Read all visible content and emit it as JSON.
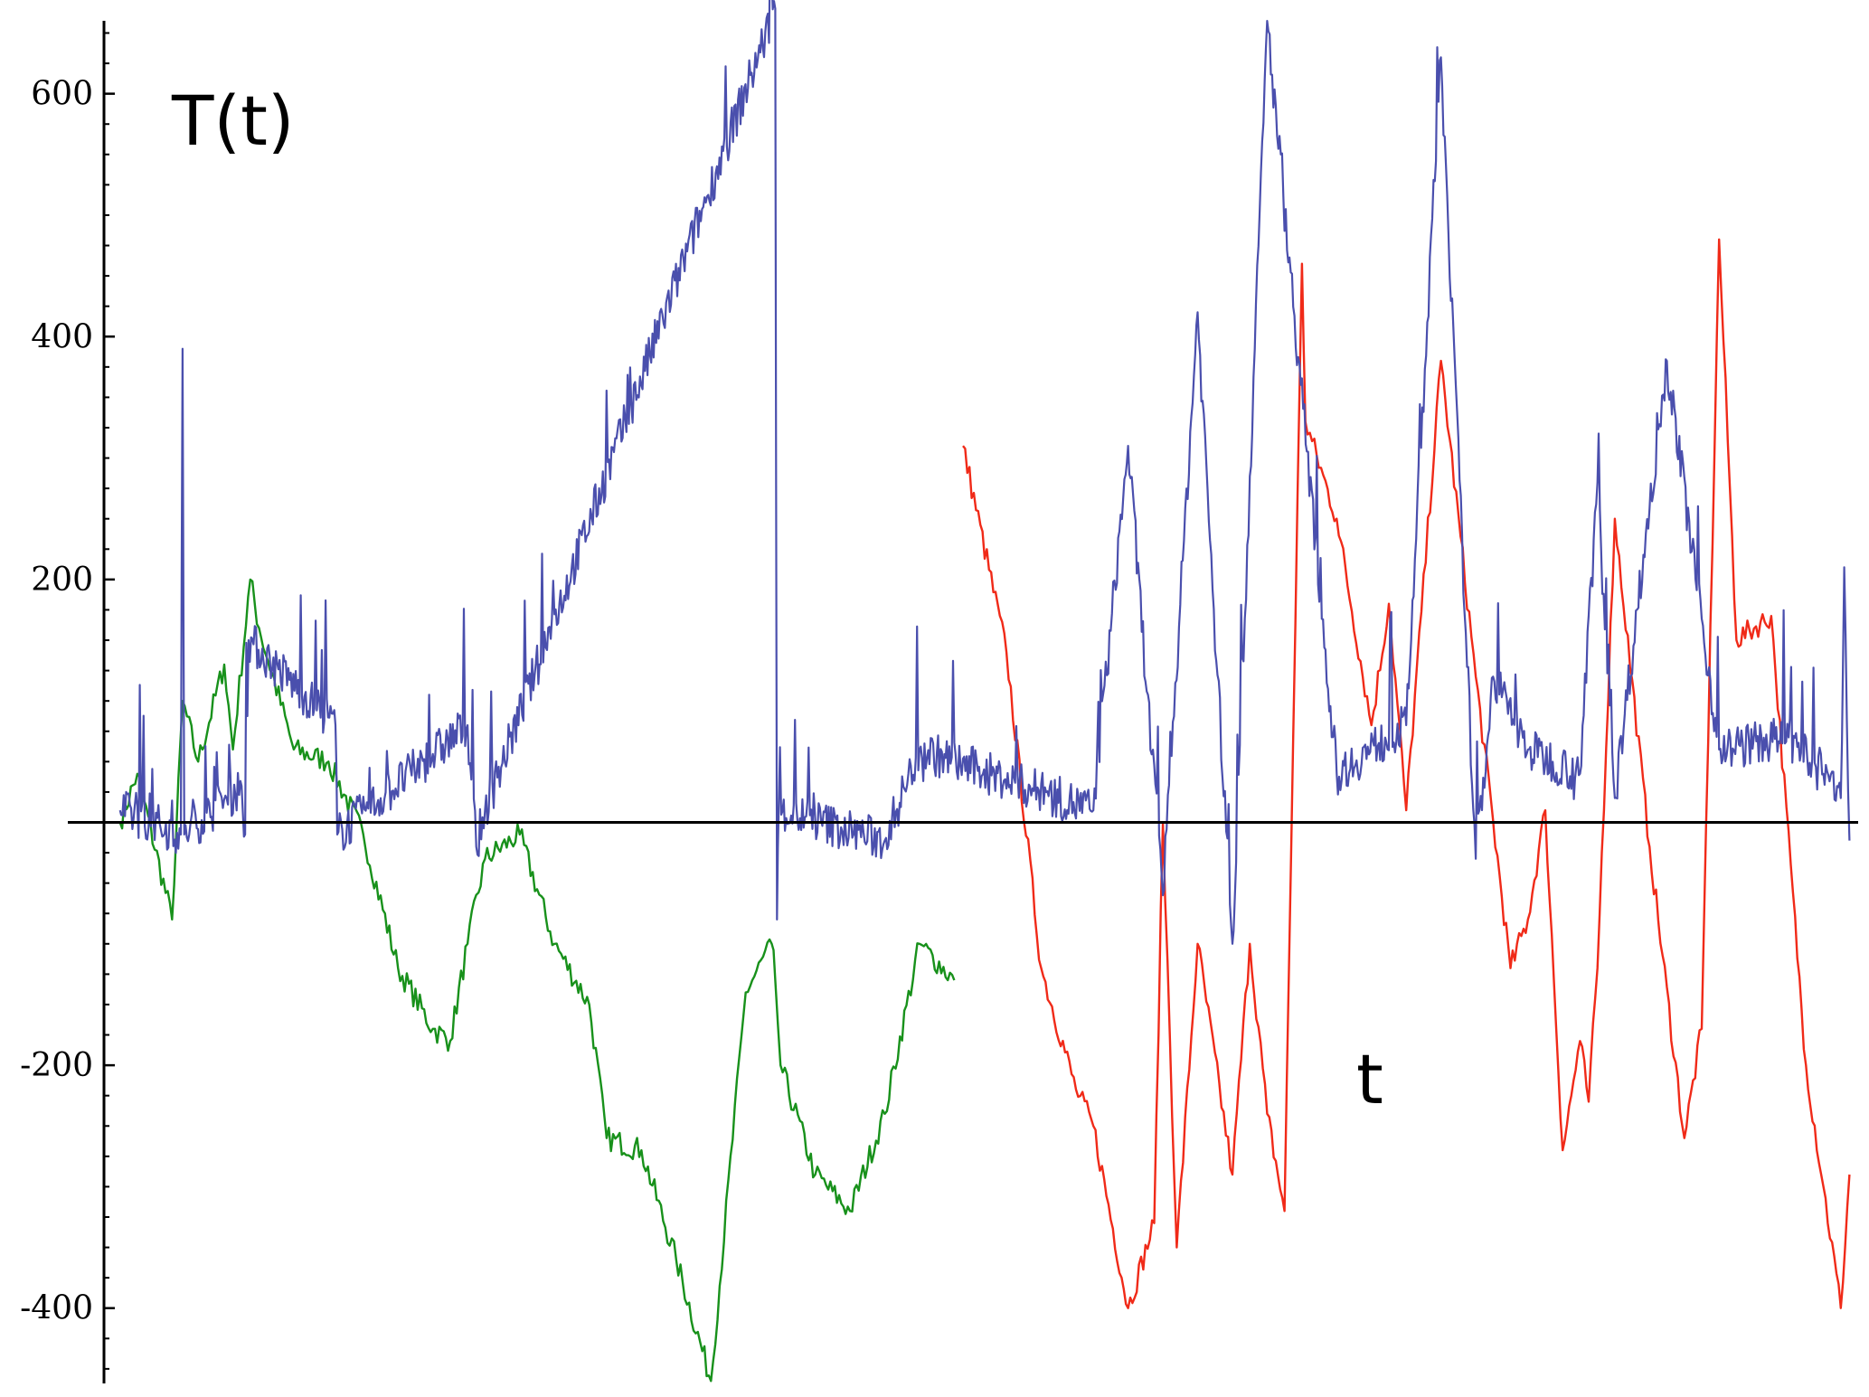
{
  "chart_data": {
    "type": "line",
    "title": "T(t)",
    "xlabel": "t",
    "ylabel": "",
    "ylim": [
      -462,
      666
    ],
    "xlim": [
      -3,
      100
    ],
    "yticks": [
      -400,
      -200,
      200,
      400,
      600
    ],
    "ytick_labels": [
      "-400",
      "-200",
      "200",
      "400",
      "600"
    ],
    "grid": false,
    "legend": "none",
    "colors": {
      "blue": "#4a4fad",
      "green": "#18911b",
      "red": "#f02a18",
      "axis": "#000000"
    },
    "series": [
      {
        "color": "#4a4fad",
        "x": [
          0,
          3.5,
          3.6,
          3.7,
          7,
          7.2,
          7.4,
          12.4,
          12.5,
          20,
          20.5,
          21,
          37.7,
          37.8,
          37.9,
          44,
          46,
          56,
          58,
          60,
          62,
          64,
          66,
          70,
          74,
          76,
          78,
          79,
          81,
          84,
          85,
          86,
          89,
          92,
          96,
          99,
          99.2,
          99.5
        ],
        "y": [
          10,
          -10,
          390,
          -10,
          30,
          -10,
          150,
          80,
          -10,
          80,
          -20,
          10,
          670,
          -80,
          10,
          -15,
          60,
          10,
          310,
          -60,
          420,
          -100,
          660,
          40,
          80,
          630,
          -30,
          120,
          60,
          40,
          280,
          20,
          380,
          60,
          70,
          20,
          210,
          -15
        ]
      },
      {
        "color": "#18911b",
        "x": [
          0,
          1,
          3,
          3.6,
          4.5,
          6,
          6.5,
          7.5,
          8,
          10,
          12,
          14,
          16,
          18,
          19,
          20,
          21,
          23,
          25,
          27,
          28,
          30,
          32,
          34,
          36,
          37.5,
          37.7,
          38,
          40,
          42,
          44,
          46,
          48
        ],
        "y": [
          0,
          40,
          -80,
          100,
          50,
          130,
          60,
          200,
          160,
          60,
          50,
          -10,
          -120,
          -170,
          -180,
          -100,
          -30,
          -10,
          -100,
          -150,
          -260,
          -270,
          -360,
          -460,
          -140,
          -100,
          -130,
          -200,
          -290,
          -320,
          -240,
          -100,
          -130
        ]
      },
      {
        "color": "#f02a18",
        "x": [
          48.5,
          51,
          53,
          55,
          56,
          58,
          59.5,
          60,
          60.8,
          62,
          64,
          65,
          66,
          67,
          68,
          68.2,
          70,
          72,
          73,
          74,
          76,
          78,
          80,
          81,
          82,
          83,
          84,
          84.5,
          85,
          86,
          88,
          90,
          91,
          92,
          93,
          95,
          97,
          98,
          99,
          99.5
        ],
        "y": [
          310,
          140,
          -120,
          -220,
          -250,
          -400,
          -330,
          0,
          -350,
          -100,
          -290,
          -100,
          -240,
          -320,
          460,
          330,
          250,
          80,
          180,
          10,
          380,
          120,
          -120,
          -80,
          10,
          -270,
          -180,
          -230,
          -120,
          250,
          -20,
          -260,
          -170,
          480,
          150,
          170,
          -200,
          -300,
          -400,
          -290
        ]
      }
    ]
  }
}
